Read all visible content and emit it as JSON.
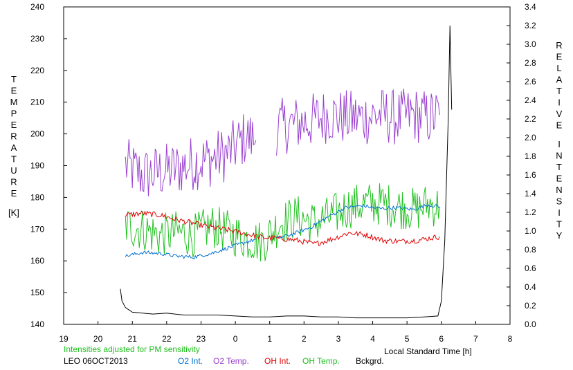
{
  "chart_data": {
    "type": "line",
    "left_axis": {
      "label_letters": [
        "T",
        "E",
        "M",
        "P",
        "E",
        "R",
        "A",
        "T",
        "U",
        "R",
        "E"
      ],
      "unit": "[K]",
      "range": [
        140,
        240
      ],
      "ticks": [
        "140",
        "150",
        "160",
        "170",
        "180",
        "190",
        "200",
        "210",
        "220",
        "230",
        "240"
      ]
    },
    "right_axis": {
      "label_word1": [
        "R",
        "E",
        "L",
        "A",
        "T",
        "I",
        "V",
        "E"
      ],
      "label_word2": [
        "I",
        "N",
        "T",
        "E",
        "N",
        "S",
        "I",
        "T",
        "Y"
      ],
      "range": [
        0.0,
        3.4
      ],
      "ticks": [
        "0.0",
        "0.2",
        "0.4",
        "0.6",
        "0.8",
        "1.0",
        "1.2",
        "1.4",
        "1.6",
        "1.8",
        "2.0",
        "2.2",
        "2.4",
        "2.6",
        "2.8",
        "3.0",
        "3.2",
        "3.4"
      ]
    },
    "x_axis": {
      "label": "Local Standard Time [h]",
      "range": [
        19,
        32
      ],
      "ticks": [
        "19",
        "20",
        "21",
        "22",
        "23",
        "0",
        "1",
        "2",
        "3",
        "4",
        "5",
        "6",
        "7",
        "8"
      ]
    },
    "note": "Intensities adjusted for PM sensitivity",
    "site_date": "LEO 06OCT2013",
    "legend": [
      {
        "label": "O2 Int.",
        "color": "#0070d0"
      },
      {
        "label": "O2 Temp.",
        "color": "#9a40d0"
      },
      {
        "label": "OH Int.",
        "color": "#e00000"
      },
      {
        "label": "OH Temp.",
        "color": "#20c020"
      },
      {
        "label": "Bckgrd.",
        "color": "#000000"
      }
    ],
    "series": [
      {
        "name": "O2 Temp.",
        "axis": "left",
        "color": "#9a40d0",
        "segments": [
          {
            "x": [
              20.8,
              21.3,
              21.8,
              22.3,
              22.8,
              23.3,
              23.8,
              24.3,
              24.6
            ],
            "y": [
              190,
              187,
              188,
              189,
              191,
              192,
              194,
              199,
              198
            ]
          },
          {
            "x": [
              25.2,
              25.7,
              26.2,
              26.7,
              27.2,
              27.7,
              28.2,
              28.7,
              29.2,
              29.6,
              29.95
            ],
            "y": [
              202,
              203,
              204,
              206,
              205,
              205,
              206,
              205,
              206,
              205,
              206
            ]
          }
        ]
      },
      {
        "name": "OH Temp.",
        "axis": "left",
        "color": "#20c020",
        "segments": [
          {
            "x": [
              20.8,
              21.3,
              21.8,
              22.3,
              22.8,
              23.3,
              23.8,
              24.3,
              24.8,
              25.3,
              25.8,
              26.3,
              26.8,
              27.3,
              27.8,
              28.3,
              28.8,
              29.3,
              29.6,
              29.95
            ],
            "y": [
              171,
              170,
              168,
              169,
              168,
              171,
              169,
              167,
              166,
              172,
              174,
              172,
              174,
              177,
              178,
              178,
              177,
              176,
              178,
              177
            ]
          }
        ]
      },
      {
        "name": "OH Int.",
        "axis": "right",
        "color": "#e00000",
        "segments": [
          {
            "x": [
              20.8,
              21.3,
              21.8,
              22.3,
              22.8,
              23.3,
              23.8,
              24.3,
              24.8,
              25.3,
              25.8,
              26.3,
              26.8,
              27.3,
              27.8,
              28.3,
              28.8,
              29.3,
              29.95
            ],
            "y": [
              1.17,
              1.19,
              1.17,
              1.12,
              1.08,
              1.04,
              1.01,
              0.97,
              0.93,
              0.92,
              0.9,
              0.86,
              0.91,
              0.98,
              0.96,
              0.9,
              0.89,
              0.9,
              0.94
            ]
          }
        ]
      },
      {
        "name": "O2 Int.",
        "axis": "right",
        "color": "#0070d0",
        "segments": [
          {
            "x": [
              20.8,
              21.3,
              21.8,
              22.3,
              22.8,
              23.3,
              23.8,
              24.3,
              24.6
            ],
            "y": [
              0.73,
              0.77,
              0.76,
              0.73,
              0.72,
              0.76,
              0.82,
              0.88,
              0.91
            ]
          },
          {
            "x": [
              25.2,
              25.7,
              26.2,
              26.7,
              27.2,
              27.7,
              28.2,
              28.7,
              29.2,
              29.6,
              29.95
            ],
            "y": [
              0.92,
              0.97,
              1.04,
              1.15,
              1.25,
              1.27,
              1.24,
              1.25,
              1.23,
              1.28,
              1.26
            ]
          }
        ]
      },
      {
        "name": "Bckgrd.",
        "axis": "right",
        "color": "#000000",
        "segments": [
          {
            "x": [
              20.65,
              20.7,
              20.8,
              21.0,
              21.3,
              21.6,
              22.0,
              22.5,
              23.0,
              23.5,
              24.0,
              24.5,
              25.0,
              25.5,
              26.0,
              26.5,
              27.0,
              27.5,
              28.0,
              28.5,
              29.0,
              29.5,
              29.9,
              30.0,
              30.1,
              30.2,
              30.25,
              30.3
            ],
            "y": [
              0.38,
              0.25,
              0.18,
              0.13,
              0.12,
              0.11,
              0.12,
              0.1,
              0.1,
              0.1,
              0.09,
              0.08,
              0.08,
              0.09,
              0.09,
              0.08,
              0.08,
              0.07,
              0.07,
              0.07,
              0.07,
              0.08,
              0.09,
              0.25,
              0.9,
              2.2,
              3.2,
              2.3
            ]
          }
        ]
      }
    ]
  }
}
